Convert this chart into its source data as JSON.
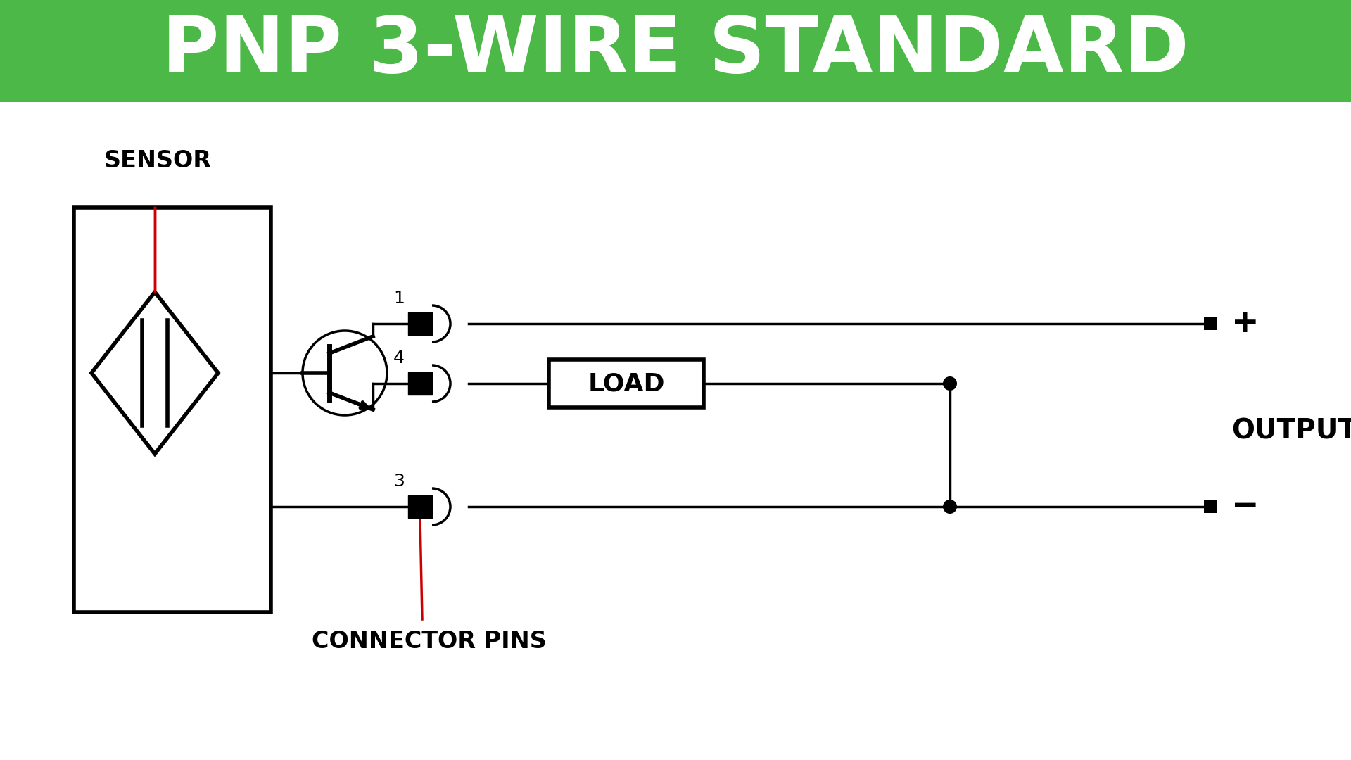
{
  "title": "PNP 3-WIRE STANDARD",
  "title_bg_color": "#4cb848",
  "title_text_color": "#ffffff",
  "bg_color": "#ffffff",
  "line_color": "#000000",
  "red_color": "#cc0000",
  "label_sensor": "SENSOR",
  "label_connector": "CONNECTOR PINS",
  "label_output": "OUTPUT",
  "label_load": "LOAD",
  "label_plus": "+",
  "label_minus": "−",
  "pin1": "1",
  "pin4": "4",
  "pin3": "3",
  "title_fontsize": 80,
  "lw": 2.5,
  "lw_thick": 4.0
}
